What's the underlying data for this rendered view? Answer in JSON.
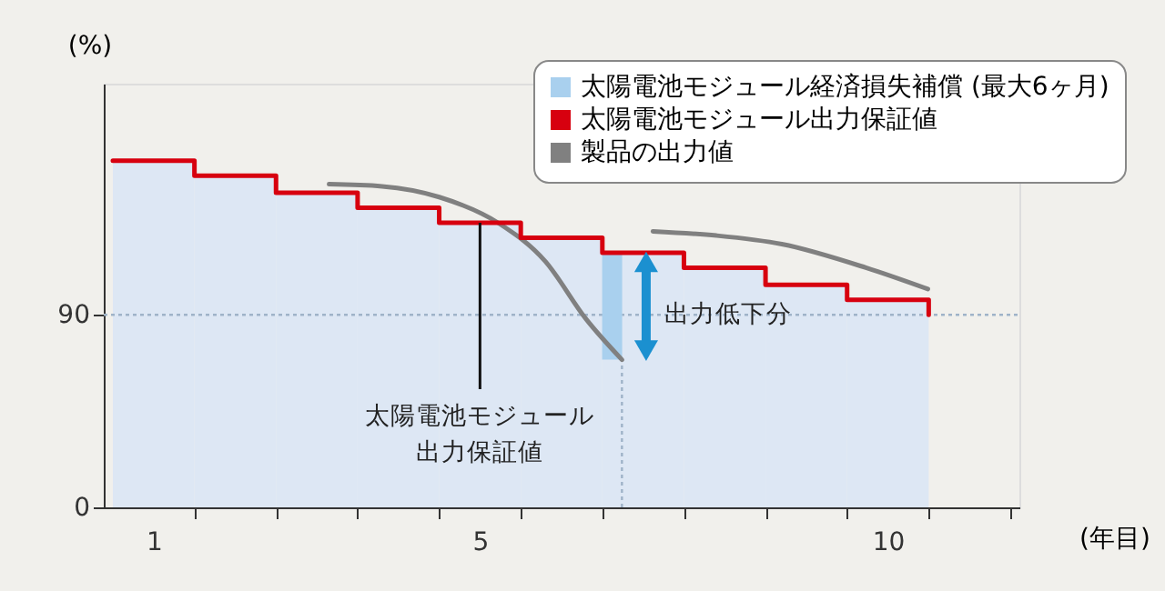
{
  "chart_data": {
    "type": "line",
    "xlabel": "(年目)",
    "ylabel": "(%)",
    "xlim": [
      0,
      11
    ],
    "ylim": [
      0,
      198
    ],
    "xticks": [
      {
        "value": 0.5,
        "label": "1"
      },
      {
        "value": 4.5,
        "label": "5"
      },
      {
        "value": 9.5,
        "label": "10"
      },
      {
        "value": 1,
        "label": null
      },
      {
        "value": 2,
        "label": null
      },
      {
        "value": 3,
        "label": null
      },
      {
        "value": 4,
        "label": null
      },
      {
        "value": 5,
        "label": null
      },
      {
        "value": 6,
        "label": null
      },
      {
        "value": 7,
        "label": null
      },
      {
        "value": 8,
        "label": null
      },
      {
        "value": 9,
        "label": null
      },
      {
        "value": 10,
        "label": null
      },
      {
        "value": 11,
        "label": null
      }
    ],
    "yticks": [
      0,
      90
    ],
    "grid": false,
    "legend": "top right",
    "marker": "none",
    "series": [
      {
        "type": "area",
        "color": "#dde7f4",
        "x": [
          0,
          1,
          2,
          3,
          4,
          5,
          6,
          7,
          8,
          9,
          10
        ],
        "values": [
          162,
          155,
          147,
          140,
          133,
          126,
          119,
          112,
          104,
          97,
          97
        ]
      },
      {
        "type": "bar",
        "name": "太陽電池モジュール経済損失補償 (最大6ヶ月)",
        "color": "#a9d0ee",
        "x": [
          6.12
        ],
        "base": [
          69
        ],
        "values": [
          50
        ]
      },
      {
        "type": "step",
        "name": "太陽電池モジュール出力保証値",
        "color": "#d7000f",
        "x": [
          0,
          1,
          2,
          3,
          4,
          5,
          6,
          7,
          8,
          9,
          10,
          10
        ],
        "values": [
          162,
          155,
          147,
          140,
          133,
          126,
          119,
          112,
          104,
          97,
          97,
          90
        ]
      },
      {
        "name": "製品の出力値",
        "color": "#808080",
        "x": [
          2.65,
          3.3,
          4.0,
          4.72,
          5.3,
          5.8,
          6.24
        ],
        "values": [
          151,
          150,
          145,
          133,
          115,
          88,
          69
        ]
      },
      {
        "color": "#808080",
        "x": [
          6.62,
          7.4,
          8.2,
          9.23,
          9.99
        ],
        "values": [
          129,
          127,
          123,
          112,
          102
        ]
      }
    ],
    "ref_lines": [
      {
        "axis": "y",
        "value": 90,
        "color": "#9fb3c8",
        "line_style": "dotted"
      },
      {
        "axis": "x",
        "value": 6.24,
        "color": "#9fb3c8",
        "line_style": "dotted"
      }
    ],
    "annotations": [
      {
        "text": "太陽電池モジュール",
        "x": 4.5,
        "y": 133
      },
      "出力保証値",
      {
        "text": "出力低下分",
        "x": 6.76,
        "y": 90
      }
    ]
  }
}
